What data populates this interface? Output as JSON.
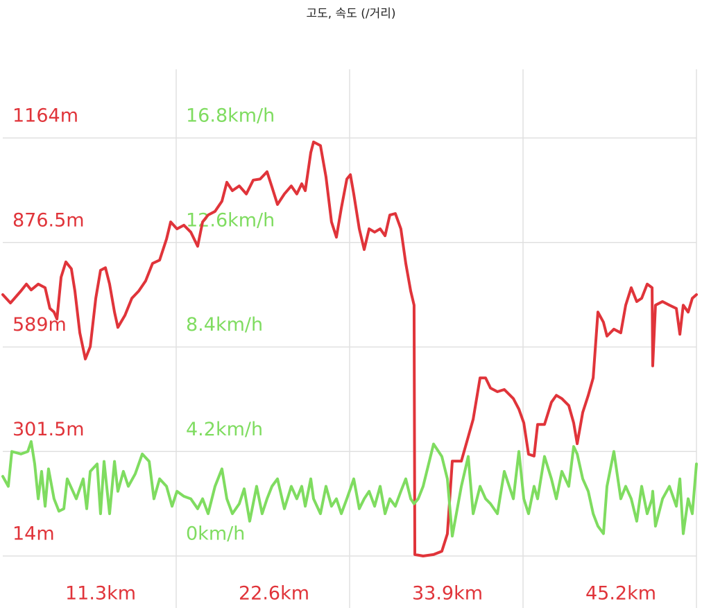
{
  "chart_data": {
    "type": "line",
    "title": "고도, 속도 (/거리)",
    "xlim": [
      0,
      45.2
    ],
    "xticks": [
      {
        "value": 11.3,
        "label": "11.3km"
      },
      {
        "value": 22.6,
        "label": "22.6km"
      },
      {
        "value": 33.9,
        "label": "33.9km"
      },
      {
        "value": 45.2,
        "label": "45.2km"
      }
    ],
    "ylim": [
      14,
      1164
    ],
    "yticks": [
      {
        "value": 1164,
        "label": "1164m"
      },
      {
        "value": 876.5,
        "label": "876.5m"
      },
      {
        "value": 589,
        "label": "589m"
      },
      {
        "value": 301.5,
        "label": "301.5m"
      },
      {
        "value": 14,
        "label": "14m"
      }
    ],
    "y2lim": [
      0,
      16.8
    ],
    "y2ticks": [
      {
        "value": 16.8,
        "label": "16.8km/h"
      },
      {
        "value": 12.6,
        "label": "12.6km/h"
      },
      {
        "value": 8.4,
        "label": "8.4km/h"
      },
      {
        "value": 4.2,
        "label": "4.2km/h"
      },
      {
        "value": 0,
        "label": "0km/h"
      }
    ],
    "grid": true,
    "series": [
      {
        "color": "#e0343a",
        "x": [
          0,
          0.5,
          1.18,
          1.54,
          1.85,
          2.31,
          2.76,
          3.07,
          3.34,
          3.53,
          3.8,
          4.11,
          4.47,
          4.7,
          5.02,
          5.38,
          5.7,
          6.06,
          6.37,
          6.69,
          6.96,
          7.28,
          7.5,
          7.96,
          8.41,
          8.86,
          9.31,
          9.76,
          10.22,
          10.67,
          10.94,
          11.35,
          11.8,
          12.25,
          12.7,
          13.02,
          13.38,
          13.83,
          14.28,
          14.6,
          14.96,
          15.41,
          15.87,
          16.32,
          16.77,
          17.22,
          17.54,
          17.9,
          18.35,
          18.8,
          19.16,
          19.48,
          19.71,
          20.07,
          20.25,
          20.7,
          21.06,
          21.42,
          21.74,
          22.06,
          22.42,
          22.65,
          22.87,
          23.23,
          23.55,
          23.87,
          24.23,
          24.59,
          24.91,
          25.22,
          25.58,
          25.94,
          26.26,
          26.58,
          26.8,
          26.85,
          27.39,
          28.07,
          28.61,
          28.97,
          29.29,
          29.88,
          30.33,
          30.65,
          31.1,
          31.46,
          31.78,
          32.23,
          32.68,
          33.27,
          33.63,
          33.95,
          34.26,
          34.62,
          34.85,
          35.3,
          35.75,
          36.07,
          36.43,
          36.88,
          37.2,
          37.43,
          37.79,
          38.15,
          38.47,
          38.78,
          39.14,
          39.37,
          39.82,
          40.27,
          40.59,
          40.95,
          41.31,
          41.63,
          41.99,
          42.31,
          42.35,
          42.53,
          42.99,
          43.44,
          43.89,
          44.12,
          44.34,
          44.66,
          44.93,
          45.2
        ],
        "values": [
          733,
          710,
          743,
          762,
          746,
          762,
          752,
          695,
          685,
          666,
          781,
          823,
          804,
          743,
          628,
          556,
          590,
          723,
          800,
          807,
          762,
          685,
          643,
          676,
          723,
          743,
          771,
          819,
          828,
          886,
          933,
          914,
          924,
          905,
          866,
          933,
          952,
          962,
          990,
          1042,
          1019,
          1032,
          1010,
          1048,
          1051,
          1071,
          1029,
          981,
          1010,
          1032,
          1010,
          1038,
          1019,
          1124,
          1153,
          1143,
          1057,
          933,
          891,
          971,
          1051,
          1063,
          1010,
          914,
          857,
          914,
          905,
          914,
          895,
          952,
          956,
          914,
          819,
          743,
          704,
          18,
          14,
          18,
          27,
          75,
          275,
          275,
          342,
          390,
          504,
          504,
          476,
          466,
          472,
          447,
          418,
          380,
          294,
          289,
          376,
          376,
          437,
          456,
          447,
          428,
          380,
          323,
          409,
          456,
          504,
          685,
          657,
          619,
          638,
          628,
          704,
          752,
          714,
          723,
          762,
          752,
          537,
          704,
          714,
          704,
          695,
          624,
          704,
          685,
          723,
          733
        ]
      },
      {
        "color": "#7fdc60",
        "axis": "y2",
        "x": [
          0,
          0.36,
          0.59,
          1.18,
          1.63,
          1.85,
          2.08,
          2.31,
          2.53,
          2.76,
          2.98,
          3.34,
          3.66,
          3.98,
          4.2,
          4.57,
          4.79,
          5.24,
          5.47,
          5.7,
          6.15,
          6.37,
          6.6,
          6.96,
          7.28,
          7.5,
          7.86,
          8.18,
          8.63,
          9.09,
          9.54,
          9.85,
          10.22,
          10.67,
          11.03,
          11.35,
          11.8,
          12.25,
          12.7,
          13.02,
          13.38,
          13.83,
          14.28,
          14.6,
          14.96,
          15.41,
          15.73,
          16.09,
          16.54,
          16.9,
          17.22,
          17.54,
          17.9,
          18.35,
          18.8,
          19.16,
          19.48,
          19.71,
          20.07,
          20.25,
          20.7,
          21.06,
          21.42,
          21.74,
          22.06,
          22.42,
          22.65,
          22.87,
          23.23,
          23.55,
          23.87,
          24.23,
          24.59,
          24.91,
          25.22,
          25.58,
          25.94,
          26.26,
          26.58,
          26.8,
          27.07,
          27.39,
          28.07,
          28.61,
          28.97,
          29.29,
          29.88,
          30.33,
          30.65,
          31.1,
          31.46,
          31.78,
          32.23,
          32.68,
          33.27,
          33.63,
          33.95,
          34.26,
          34.62,
          34.85,
          35.3,
          35.75,
          36.07,
          36.43,
          36.88,
          37.2,
          37.43,
          37.79,
          38.15,
          38.47,
          38.78,
          39.14,
          39.37,
          39.82,
          40.27,
          40.59,
          40.95,
          41.31,
          41.63,
          41.99,
          42.31,
          42.35,
          42.53,
          42.99,
          43.44,
          43.89,
          44.12,
          44.34,
          44.66,
          44.93,
          45.2
        ],
        "values": [
          3.2,
          2.8,
          4.2,
          4.1,
          4.2,
          4.6,
          3.7,
          2.3,
          3.4,
          2.0,
          3.5,
          2.3,
          1.8,
          1.9,
          3.1,
          2.6,
          2.3,
          3.1,
          1.9,
          3.4,
          3.7,
          1.7,
          3.8,
          1.7,
          3.8,
          2.6,
          3.4,
          2.8,
          3.3,
          4.1,
          3.8,
          2.3,
          3.1,
          2.8,
          2.0,
          2.6,
          2.4,
          2.3,
          1.9,
          2.3,
          1.7,
          2.8,
          3.5,
          2.3,
          1.7,
          2.1,
          2.7,
          1.4,
          2.8,
          1.7,
          2.3,
          2.8,
          3.1,
          1.9,
          2.8,
          2.3,
          2.8,
          2.0,
          3.1,
          2.3,
          1.7,
          2.8,
          2.0,
          2.3,
          1.7,
          2.3,
          2.7,
          3.1,
          1.9,
          2.3,
          2.6,
          2.0,
          2.8,
          1.7,
          2.3,
          2.0,
          2.6,
          3.1,
          2.3,
          2.1,
          2.3,
          2.8,
          4.5,
          4.0,
          3.1,
          0.8,
          2.8,
          4.0,
          1.7,
          2.8,
          2.3,
          2.1,
          1.7,
          3.4,
          2.3,
          4.2,
          2.3,
          1.7,
          2.8,
          2.3,
          4.0,
          3.1,
          2.3,
          3.4,
          2.8,
          4.4,
          4.1,
          3.1,
          2.6,
          1.7,
          1.2,
          0.9,
          2.8,
          4.2,
          2.3,
          2.8,
          2.3,
          1.4,
          2.8,
          1.7,
          2.3,
          2.6,
          1.2,
          2.3,
          2.8,
          2.0,
          3.1,
          0.9,
          2.3,
          1.7,
          3.7
        ]
      }
    ]
  }
}
